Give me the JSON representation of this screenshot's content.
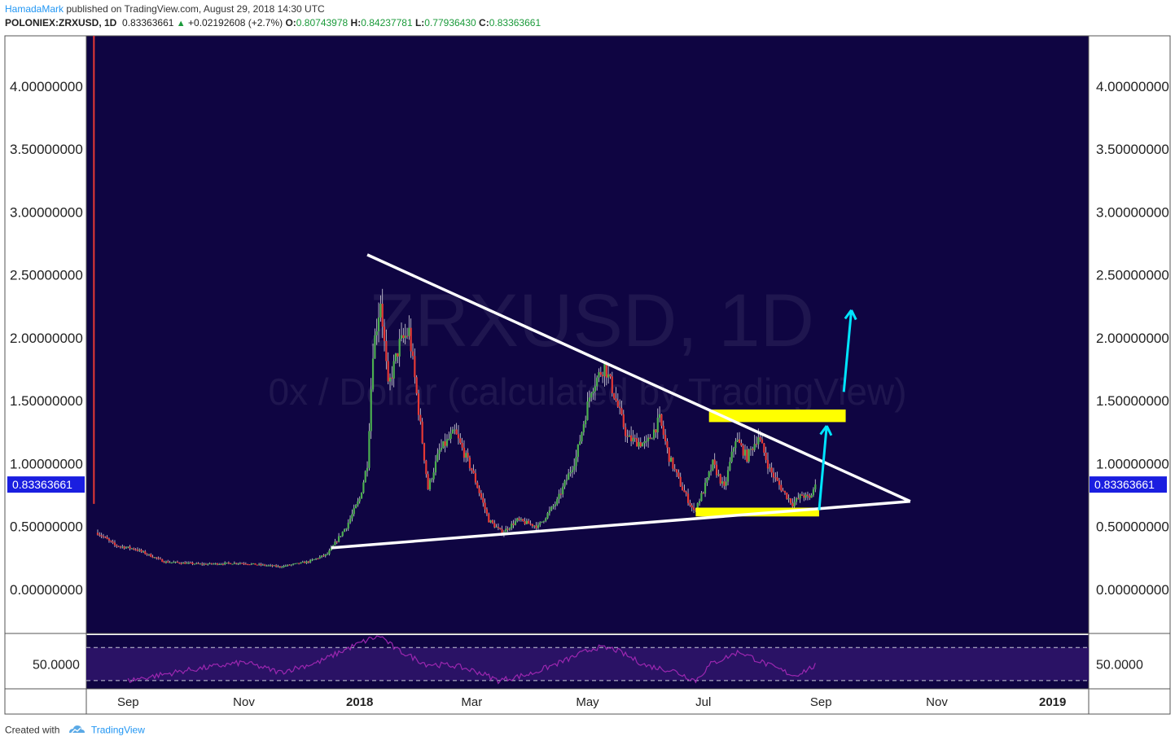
{
  "header": {
    "author": "HamadaMark",
    "published_text": "published on TradingView.com, August 29, 2018 14:30 UTC",
    "symbol": "POLONIEX:ZRXUSD, 1D",
    "last": "0.83363661",
    "change_arrow": "▲",
    "change": "+0.02192608 (+2.7%)",
    "open_label": "O:",
    "open": "0.80743978",
    "high_label": "H:",
    "high": "0.84237781",
    "low_label": "L:",
    "low": "0.77936430",
    "close_label": "C:",
    "close": "0.83363661"
  },
  "footer": {
    "created_with": "Created with",
    "brand": "TradingView"
  },
  "chart_data": {
    "type": "candlestick",
    "symbol": "ZRXUSD",
    "interval": "1D",
    "watermark_symbol": "ZRXUSD, 1D",
    "watermark_description": "0x / Dollar (calculated by TradingView)",
    "price_axis": {
      "ylim": [
        -0.35,
        4.4
      ],
      "ticks": [
        0,
        0.5,
        1,
        1.5,
        2,
        2.5,
        3,
        3.5,
        4
      ],
      "tick_labels": [
        "0.00000000",
        "0.50000000",
        "1.00000000",
        "1.50000000",
        "2.00000000",
        "2.50000000",
        "3.00000000",
        "3.50000000",
        "4.00000000"
      ],
      "last_price_label": "0.83363661",
      "last_price": 0.83363661
    },
    "time_axis": {
      "range": [
        "2017-08-10",
        "2019-01-20"
      ],
      "ticks": [
        {
          "date": "2017-09-01",
          "label": "Sep",
          "bold": false
        },
        {
          "date": "2017-11-01",
          "label": "Nov",
          "bold": false
        },
        {
          "date": "2018-01-01",
          "label": "2018",
          "bold": true
        },
        {
          "date": "2018-03-01",
          "label": "Mar",
          "bold": false
        },
        {
          "date": "2018-05-01",
          "label": "May",
          "bold": false
        },
        {
          "date": "2018-07-01",
          "label": "Jul",
          "bold": false
        },
        {
          "date": "2018-09-01",
          "label": "Sep",
          "bold": false
        },
        {
          "date": "2018-11-01",
          "label": "Nov",
          "bold": false
        },
        {
          "date": "2019-01-01",
          "label": "2019",
          "bold": true
        }
      ]
    },
    "price_path": [
      [
        "2017-08-16",
        0.45
      ],
      [
        "2017-08-25",
        0.35
      ],
      [
        "2017-09-05",
        0.32
      ],
      [
        "2017-09-20",
        0.22
      ],
      [
        "2017-10-10",
        0.2
      ],
      [
        "2017-10-30",
        0.21
      ],
      [
        "2017-11-20",
        0.18
      ],
      [
        "2017-12-05",
        0.22
      ],
      [
        "2017-12-15",
        0.28
      ],
      [
        "2017-12-25",
        0.5
      ],
      [
        "2018-01-01",
        0.72
      ],
      [
        "2018-01-05",
        1.0
      ],
      [
        "2018-01-08",
        1.9
      ],
      [
        "2018-01-12",
        2.3
      ],
      [
        "2018-01-16",
        1.6
      ],
      [
        "2018-01-22",
        1.95
      ],
      [
        "2018-01-27",
        2.05
      ],
      [
        "2018-02-02",
        1.3
      ],
      [
        "2018-02-06",
        0.8
      ],
      [
        "2018-02-12",
        1.1
      ],
      [
        "2018-02-20",
        1.25
      ],
      [
        "2018-03-01",
        0.95
      ],
      [
        "2018-03-10",
        0.55
      ],
      [
        "2018-03-17",
        0.45
      ],
      [
        "2018-03-25",
        0.55
      ],
      [
        "2018-04-05",
        0.5
      ],
      [
        "2018-04-15",
        0.7
      ],
      [
        "2018-04-25",
        1.05
      ],
      [
        "2018-05-03",
        1.6
      ],
      [
        "2018-05-10",
        1.78
      ],
      [
        "2018-05-15",
        1.55
      ],
      [
        "2018-05-22",
        1.2
      ],
      [
        "2018-06-01",
        1.15
      ],
      [
        "2018-06-08",
        1.35
      ],
      [
        "2018-06-13",
        1.05
      ],
      [
        "2018-06-20",
        0.8
      ],
      [
        "2018-06-26",
        0.62
      ],
      [
        "2018-07-01",
        0.78
      ],
      [
        "2018-07-06",
        1.0
      ],
      [
        "2018-07-12",
        0.8
      ],
      [
        "2018-07-18",
        1.2
      ],
      [
        "2018-07-24",
        1.05
      ],
      [
        "2018-07-30",
        1.22
      ],
      [
        "2018-08-05",
        0.95
      ],
      [
        "2018-08-12",
        0.78
      ],
      [
        "2018-08-17",
        0.68
      ],
      [
        "2018-08-22",
        0.75
      ],
      [
        "2018-08-26",
        0.72
      ],
      [
        "2018-08-29",
        0.833
      ]
    ],
    "drawings": {
      "resistance_line": [
        [
          "2018-01-05",
          2.66
        ],
        [
          "2018-10-18",
          0.7
        ]
      ],
      "support_line": [
        [
          "2017-12-17",
          0.33
        ],
        [
          "2018-10-18",
          0.7
        ]
      ],
      "vertical_marker": [
        "2017-08-14",
        [
          0.68,
          4.4
        ]
      ],
      "highlight_zones": [
        {
          "from": "2018-07-04",
          "to": "2018-09-14",
          "y": [
            1.33,
            1.43
          ],
          "color": "#ffff00"
        },
        {
          "from": "2018-06-27",
          "to": "2018-08-31",
          "y": [
            0.58,
            0.65
          ],
          "color": "#ffff00"
        }
      ],
      "arrows": [
        {
          "from": [
            "2018-08-31",
            0.63
          ],
          "to": [
            "2018-09-04",
            1.3
          ],
          "color": "#00e5ff"
        },
        {
          "from": [
            "2018-09-13",
            1.57
          ],
          "to": [
            "2018-09-17",
            2.22
          ],
          "color": "#00e5ff"
        }
      ]
    },
    "rsi": {
      "tick_label": "50.0000",
      "ylim": [
        20,
        85
      ],
      "band": [
        30,
        70
      ],
      "tick": 50,
      "path": [
        [
          "2017-09-01",
          30
        ],
        [
          "2017-10-01",
          42
        ],
        [
          "2017-11-01",
          52
        ],
        [
          "2017-11-20",
          40
        ],
        [
          "2017-12-10",
          52
        ],
        [
          "2017-12-25",
          68
        ],
        [
          "2018-01-06",
          80
        ],
        [
          "2018-01-12",
          84
        ],
        [
          "2018-01-20",
          68
        ],
        [
          "2018-02-05",
          50
        ],
        [
          "2018-02-20",
          48
        ],
        [
          "2018-03-05",
          40
        ],
        [
          "2018-03-15",
          30
        ],
        [
          "2018-04-01",
          38
        ],
        [
          "2018-04-20",
          55
        ],
        [
          "2018-05-05",
          70
        ],
        [
          "2018-05-15",
          68
        ],
        [
          "2018-06-01",
          48
        ],
        [
          "2018-06-15",
          42
        ],
        [
          "2018-06-27",
          30
        ],
        [
          "2018-07-05",
          50
        ],
        [
          "2018-07-20",
          65
        ],
        [
          "2018-08-05",
          48
        ],
        [
          "2018-08-18",
          36
        ],
        [
          "2018-08-29",
          48
        ]
      ]
    },
    "colors": {
      "background": "#0f0542",
      "panel_border": "#545454",
      "up": "#4caf50",
      "down": "#e53935",
      "wick": "#d8d8e0",
      "trendline": "#ffffff",
      "vertical_marker": "#e53935",
      "last_price_badge": "#1a1ee0",
      "rsi_line": "#9c27b0",
      "rsi_band": "#2a1265"
    }
  }
}
